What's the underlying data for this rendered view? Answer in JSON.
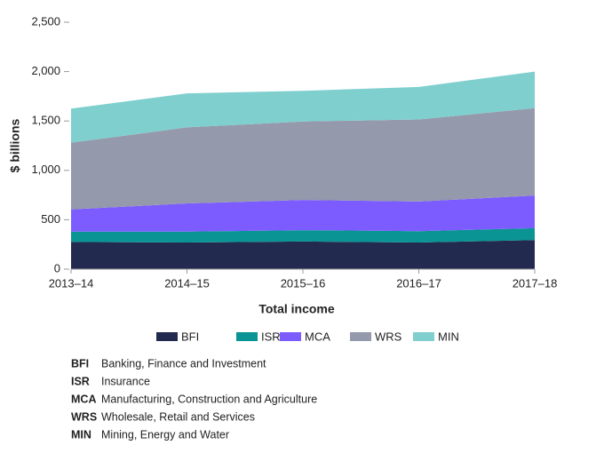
{
  "chart_data": {
    "type": "stacked_area",
    "x_label": "Total income",
    "y_label": "$ billions",
    "categories": [
      "2013–14",
      "2014–15",
      "2015–16",
      "2016–17",
      "2017–18"
    ],
    "series": [
      {
        "name": "BFI",
        "color": "#232a4f",
        "values": [
          275,
          270,
          280,
          270,
          295
        ]
      },
      {
        "name": "ISR",
        "color": "#0a9494",
        "values": [
          105,
          110,
          115,
          115,
          120
        ]
      },
      {
        "name": "MCA",
        "color": "#7c5cff",
        "values": [
          225,
          285,
          305,
          300,
          330
        ]
      },
      {
        "name": "WRS",
        "color": "#9499ab",
        "values": [
          675,
          770,
          795,
          830,
          885
        ]
      },
      {
        "name": "MIN",
        "color": "#7fcfcf",
        "values": [
          345,
          345,
          310,
          330,
          370
        ]
      }
    ],
    "ylim": [
      0,
      2500
    ],
    "yticks": [
      0,
      500,
      {
        "value": 1000,
        "label": "1,000"
      },
      {
        "value": 1500,
        "label": "1,500"
      },
      {
        "value": 2000,
        "label": "2,000"
      },
      {
        "value": 2500,
        "label": "2,500"
      }
    ],
    "grid": false,
    "glossary": [
      {
        "abbr": "BFI",
        "text": "Banking, Finance and Investment"
      },
      {
        "abbr": "ISR",
        "text": "Insurance"
      },
      {
        "abbr": "MCA",
        "text": "Manufacturing, Construction and Agriculture"
      },
      {
        "abbr": "WRS",
        "text": "Wholesale, Retail and Services"
      },
      {
        "abbr": "MIN",
        "text": "Mining, Energy and Water"
      }
    ]
  }
}
